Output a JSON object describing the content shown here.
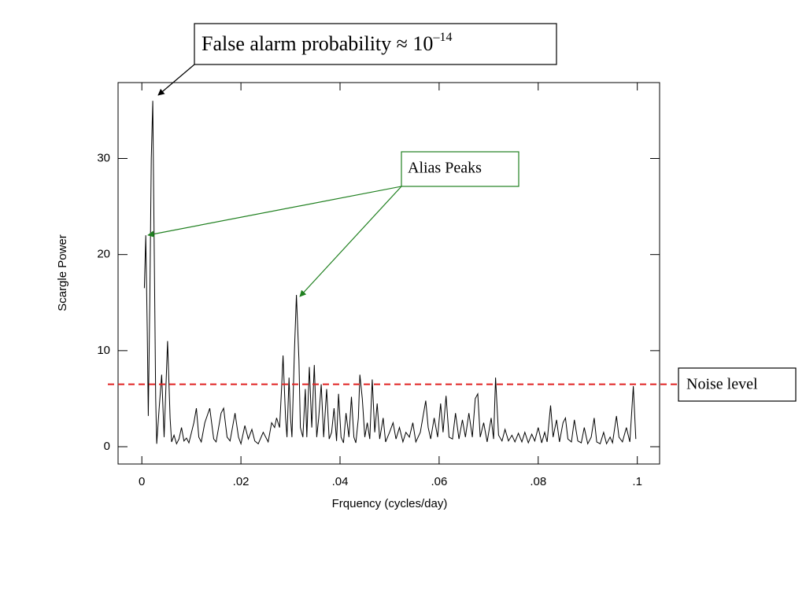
{
  "chart_data": {
    "type": "line",
    "xlabel": "Frquency (cycles/day)",
    "ylabel": "Scargle Power",
    "xlim": [
      -0.0048,
      0.1045
    ],
    "ylim": [
      -1.8,
      37.9
    ],
    "xticks": [
      0,
      {
        "value": 0.02,
        "label": ".02"
      },
      {
        "value": 0.04,
        "label": ".04"
      },
      {
        "value": 0.06,
        "label": ".06"
      },
      {
        "value": 0.08,
        "label": ".08"
      },
      {
        "value": 0.1,
        "label": ".1"
      }
    ],
    "yticks": [
      0,
      10,
      20,
      30
    ],
    "noise_level": {
      "value": 6.5,
      "label": "Noise level",
      "color": "#e02020"
    },
    "annotations": {
      "false_alarm": {
        "text": "False alarm probability ≈ 10",
        "superscript": "–14"
      },
      "alias": {
        "text": "Alias Peaks",
        "color": "#208020"
      }
    },
    "series": [
      {
        "color": "#000000",
        "x": [
          0.0005,
          0.0008,
          0.0011,
          0.0013,
          0.0016,
          0.0019,
          0.0022,
          0.0025,
          0.0028,
          0.003,
          0.0035,
          0.004,
          0.0045,
          0.0052,
          0.0057,
          0.006,
          0.0065,
          0.007,
          0.0075,
          0.008,
          0.0085,
          0.009,
          0.0095,
          0.0105,
          0.011,
          0.0115,
          0.012,
          0.0127,
          0.0137,
          0.0145,
          0.015,
          0.016,
          0.0165,
          0.0172,
          0.0178,
          0.0188,
          0.0195,
          0.02,
          0.0208,
          0.0215,
          0.0222,
          0.0228,
          0.0235,
          0.0245,
          0.0255,
          0.0262,
          0.0268,
          0.0272,
          0.0278,
          0.0282,
          0.0285,
          0.029,
          0.0293,
          0.0297,
          0.03,
          0.0303,
          0.0308,
          0.0312,
          0.0317,
          0.032,
          0.0325,
          0.033,
          0.0333,
          0.0338,
          0.0343,
          0.0348,
          0.0353,
          0.0357,
          0.0362,
          0.0367,
          0.0373,
          0.0378,
          0.0383,
          0.0388,
          0.0393,
          0.0397,
          0.0402,
          0.0407,
          0.0412,
          0.0418,
          0.0423,
          0.0428,
          0.0432,
          0.0437,
          0.044,
          0.0445,
          0.045,
          0.0455,
          0.046,
          0.0465,
          0.047,
          0.0475,
          0.048,
          0.0487,
          0.0492,
          0.05,
          0.0507,
          0.0513,
          0.052,
          0.0527,
          0.0533,
          0.054,
          0.0547,
          0.0553,
          0.0562,
          0.0573,
          0.0578,
          0.0583,
          0.059,
          0.0597,
          0.0603,
          0.0608,
          0.0614,
          0.062,
          0.0627,
          0.0633,
          0.064,
          0.0647,
          0.0653,
          0.066,
          0.0667,
          0.0673,
          0.0678,
          0.0683,
          0.069,
          0.0697,
          0.0705,
          0.071,
          0.0714,
          0.072,
          0.0727,
          0.0733,
          0.074,
          0.0747,
          0.0753,
          0.076,
          0.0767,
          0.0773,
          0.078,
          0.0787,
          0.0793,
          0.08,
          0.0807,
          0.0813,
          0.0818,
          0.0825,
          0.083,
          0.0837,
          0.0843,
          0.085,
          0.0855,
          0.086,
          0.0867,
          0.0873,
          0.088,
          0.0887,
          0.0893,
          0.09,
          0.0907,
          0.0913,
          0.0918,
          0.0925,
          0.0932,
          0.0938,
          0.0945,
          0.095,
          0.0958,
          0.0963,
          0.097,
          0.0978,
          0.0985,
          0.0992,
          0.0997
        ],
        "values": [
          16.5,
          22,
          12,
          3.2,
          15,
          30,
          36,
          20,
          5,
          0.3,
          4,
          7.5,
          1,
          11,
          3,
          0.5,
          1.2,
          0.3,
          0.8,
          2,
          0.6,
          0.9,
          0.4,
          2.5,
          4,
          1,
          0.5,
          2.5,
          4,
          0.8,
          0.5,
          3.5,
          4,
          1,
          0.6,
          3.5,
          1,
          0.3,
          2.2,
          0.8,
          1.8,
          0.6,
          0.3,
          1.5,
          0.5,
          2.5,
          2,
          3,
          2,
          6,
          9.5,
          3,
          1,
          7.2,
          3,
          1,
          10,
          15.8,
          9,
          2,
          1,
          6,
          1,
          8.3,
          2,
          8.5,
          1,
          3,
          6.5,
          1,
          6,
          0.8,
          1.5,
          4,
          0.6,
          5.5,
          1,
          0.4,
          3.5,
          1,
          5.2,
          1,
          0.4,
          3,
          7.5,
          5,
          1,
          2.5,
          0.8,
          7,
          1.5,
          4.5,
          0.8,
          3,
          0.5,
          1.5,
          2.5,
          0.8,
          2,
          0.5,
          1.5,
          1,
          2.5,
          0.5,
          1.5,
          4.8,
          2,
          0.8,
          3,
          1,
          4.5,
          1.5,
          5.3,
          1,
          0.8,
          3.5,
          0.8,
          2.8,
          1,
          3.5,
          1,
          5,
          5.5,
          1,
          2.5,
          0.5,
          3,
          0.8,
          7.2,
          1.2,
          0.6,
          1.8,
          0.6,
          1.2,
          0.5,
          1.4,
          0.5,
          1.5,
          0.4,
          1.3,
          0.6,
          2,
          0.4,
          1.5,
          0.5,
          4.3,
          1,
          2.8,
          0.5,
          2.5,
          3,
          0.8,
          0.5,
          2.8,
          0.6,
          0.4,
          2,
          0.3,
          1,
          3,
          0.5,
          0.3,
          1.5,
          0.3,
          1,
          0.4,
          3.2,
          1,
          0.5,
          2,
          0.5,
          6.3,
          0.8
        ]
      }
    ]
  }
}
